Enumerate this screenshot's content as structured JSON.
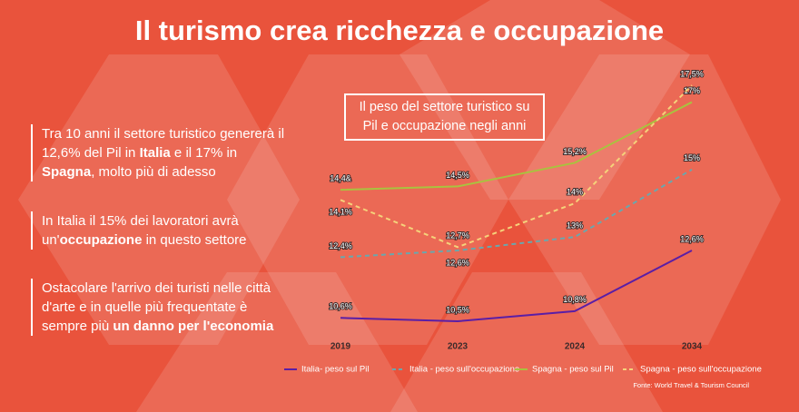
{
  "header": {
    "title": "Il turismo crea ricchezza e occupazione"
  },
  "notes": [
    [
      {
        "text": "Tra 10 anni il settore turistico genererà il 12,6% del Pil in ",
        "bold": false
      },
      {
        "text": "Italia",
        "bold": true
      },
      {
        "text": " e il 17% in ",
        "bold": false
      },
      {
        "text": "Spagna",
        "bold": true
      },
      {
        "text": ", molto più di adesso",
        "bold": false
      }
    ],
    [
      {
        "text": "In Italia il 15% dei lavoratori avrà un'",
        "bold": false
      },
      {
        "text": "occupazione",
        "bold": true
      },
      {
        "text": " in questo settore",
        "bold": false
      }
    ],
    [
      {
        "text": "Ostacolare l'arrivo dei turisti nelle città d'arte e in quelle più frequentate è sempre più ",
        "bold": false
      },
      {
        "text": "un danno per l'economia",
        "bold": true
      }
    ]
  ],
  "chart_data": {
    "type": "line",
    "title_lines": [
      "Il peso del settore turistico su",
      "Pil e occupazione negli anni"
    ],
    "categories": [
      "2019",
      "2023",
      "2024",
      "2034"
    ],
    "series": [
      {
        "name": "Italia- peso sul Pil",
        "color": "#5a1ea6",
        "dashed": false,
        "values": [
          10.6,
          10.5,
          10.8,
          12.6
        ],
        "value_labels": [
          "10,6%",
          "10,5%",
          "10,8%",
          "12,6%"
        ]
      },
      {
        "name": "Italia - peso sull'occupazione",
        "color": "#6aa7ad",
        "dashed": true,
        "values": [
          12.4,
          12.6,
          13,
          15
        ],
        "value_labels": [
          "12,4%",
          "12,6%",
          "13%",
          "15%"
        ]
      },
      {
        "name": "Spagna - peso sul Pil",
        "color": "#a9c23f",
        "dashed": false,
        "values": [
          14.4,
          14.5,
          15.2,
          17
        ],
        "value_labels": [
          "14,4&",
          "14,5%",
          "15,2%",
          "17%"
        ]
      },
      {
        "name": "Spagna - peso sull'occupazione",
        "color": "#f5d27a",
        "dashed": true,
        "values": [
          14.1,
          12.7,
          14,
          17.5
        ],
        "value_labels": [
          "14,1%",
          "12,7%",
          "14%",
          "17,5%"
        ]
      }
    ],
    "source": "Fonte: World Travel & Tourism Council"
  }
}
